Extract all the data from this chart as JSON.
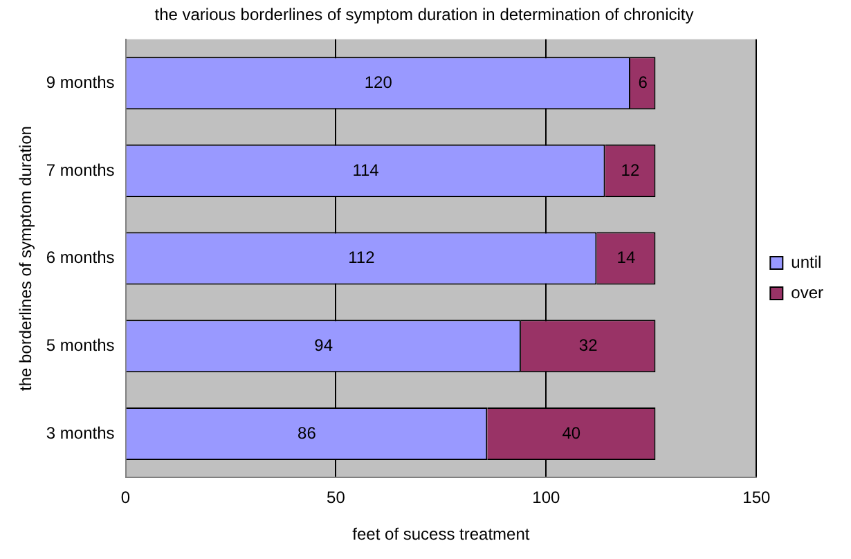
{
  "chart_data": {
    "type": "bar",
    "orientation": "horizontal",
    "stacked": true,
    "title": "the various borderlines of symptom duration in determination of chronicity",
    "xlabel": "feet of sucess treatment",
    "ylabel": "the borderlines of symptom duration",
    "categories": [
      "9 months",
      "7 months",
      "6 months",
      "5 months",
      "3 months"
    ],
    "series": [
      {
        "name": "until",
        "color": "#9999ff",
        "values": [
          120,
          114,
          112,
          94,
          86
        ]
      },
      {
        "name": "over",
        "color": "#993366",
        "values": [
          6,
          12,
          14,
          32,
          40
        ]
      }
    ],
    "xlim": [
      0,
      150
    ],
    "xticks": [
      0,
      50,
      100,
      150
    ],
    "grid": "x",
    "legend": "right",
    "data_labels": true
  }
}
